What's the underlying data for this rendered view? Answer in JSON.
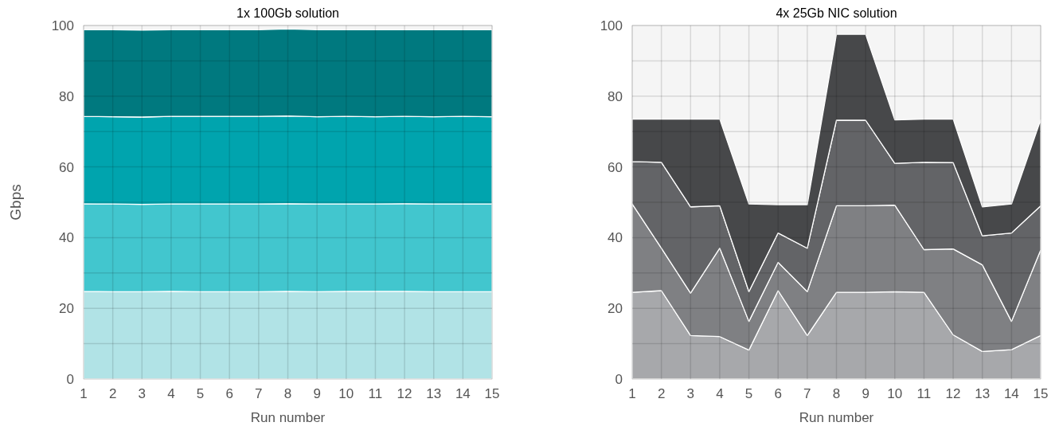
{
  "chart_data": [
    {
      "type": "area",
      "stacked": true,
      "title": "1x 100Gb solution",
      "xlabel": "Run number",
      "ylabel": "Gbps",
      "x": [
        1,
        2,
        3,
        4,
        5,
        6,
        7,
        8,
        9,
        10,
        11,
        12,
        13,
        14,
        15
      ],
      "xlim": [
        1,
        15
      ],
      "xticks": [
        1,
        2,
        3,
        4,
        5,
        6,
        7,
        8,
        9,
        10,
        11,
        12,
        13,
        14,
        15
      ],
      "ylim": [
        0,
        100
      ],
      "yticks": [
        0,
        {
          "value": 10,
          "label": null
        },
        20,
        {
          "value": 30,
          "label": null
        },
        40,
        {
          "value": 50,
          "label": null
        },
        60,
        {
          "value": 70,
          "label": null
        },
        80,
        {
          "value": 90,
          "label": null
        },
        100
      ],
      "grid": true,
      "series": [
        {
          "color": "#b1e3e6",
          "values": [
            24.8,
            24.7,
            24.7,
            24.8,
            24.7,
            24.7,
            24.7,
            24.8,
            24.7,
            24.8,
            24.8,
            24.8,
            24.7,
            24.7,
            24.7
          ]
        },
        {
          "color": "#42c6ce",
          "values": [
            24.8,
            24.8,
            24.7,
            24.7,
            24.8,
            24.8,
            24.8,
            24.8,
            24.8,
            24.7,
            24.7,
            24.8,
            24.8,
            24.8,
            24.8
          ]
        },
        {
          "color": "#00a4ae",
          "values": [
            24.7,
            24.7,
            24.7,
            24.8,
            24.8,
            24.8,
            24.8,
            24.8,
            24.7,
            24.8,
            24.7,
            24.7,
            24.7,
            24.8,
            24.7
          ]
        },
        {
          "color": "#00797f",
          "values": [
            24.5,
            24.6,
            24.6,
            24.5,
            24.5,
            24.5,
            24.5,
            24.6,
            24.6,
            24.5,
            24.6,
            24.5,
            24.6,
            24.5,
            24.6
          ]
        }
      ]
    },
    {
      "type": "area",
      "stacked": true,
      "title": "4x 25Gb NIC solution",
      "xlabel": "Run number",
      "x": [
        1,
        2,
        3,
        4,
        5,
        6,
        7,
        8,
        9,
        10,
        11,
        12,
        13,
        14,
        15
      ],
      "xlim": [
        1,
        15
      ],
      "xticks": [
        1,
        2,
        3,
        4,
        5,
        6,
        7,
        8,
        9,
        10,
        11,
        12,
        13,
        14,
        15
      ],
      "ylim": [
        0,
        100
      ],
      "yticks": [
        0,
        {
          "value": 10,
          "label": null
        },
        20,
        {
          "value": 30,
          "label": null
        },
        40,
        {
          "value": 50,
          "label": null
        },
        60,
        {
          "value": 70,
          "label": null
        },
        80,
        {
          "value": 90,
          "label": null
        },
        100
      ],
      "grid": true,
      "series": [
        {
          "color": "#a7a8ab",
          "values": [
            24.5,
            25,
            12.3,
            12,
            8.2,
            25,
            12.3,
            24.5,
            24.5,
            24.7,
            24.5,
            12.5,
            7.8,
            8.3,
            12.3
          ]
        },
        {
          "color": "#7f8083",
          "values": [
            25,
            12,
            12,
            25,
            8.1,
            8,
            12.4,
            24.5,
            24.5,
            24.5,
            12.1,
            24.3,
            24.5,
            8,
            24.2
          ]
        },
        {
          "color": "#636467",
          "values": [
            12,
            24.3,
            24.4,
            12,
            8.4,
            8.3,
            12.3,
            24.2,
            24.2,
            11.8,
            24.7,
            24.4,
            8.2,
            25,
            12.5
          ]
        },
        {
          "color": "#47484a",
          "values": [
            12,
            12.2,
            24.8,
            24.5,
            24.8,
            8,
            12.3,
            24.3,
            24.3,
            12.3,
            12.2,
            12.3,
            8.2,
            8.2,
            24.3
          ]
        }
      ]
    }
  ]
}
